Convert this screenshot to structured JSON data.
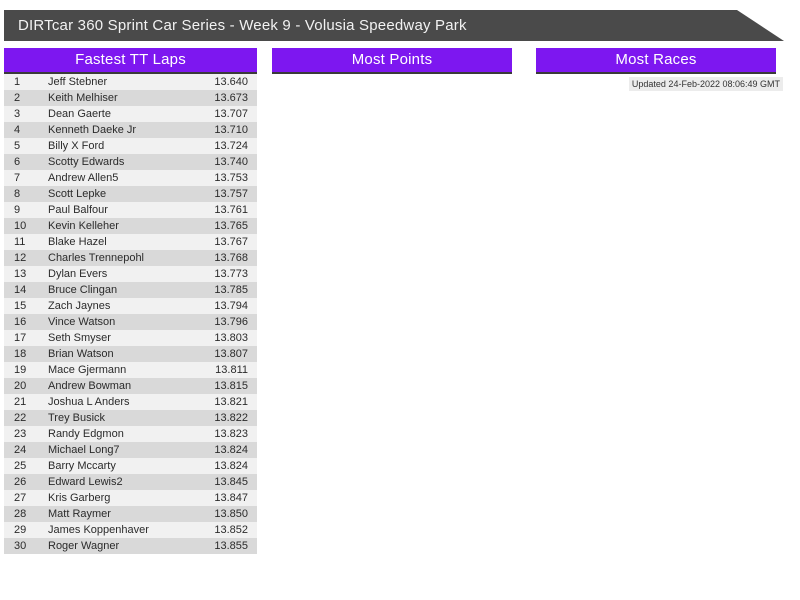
{
  "banner": {
    "title": "DIRTcar 360 Sprint Car Series - Week 9 - Volusia Speedway Park"
  },
  "sections": {
    "fastest_tt_laps_title": "Fastest TT Laps",
    "most_points_title": "Most Points",
    "most_races_title": "Most Races"
  },
  "updated_label": "Updated 24-Feb-2022 08:06:49 GMT",
  "colors": {
    "banner_gray": "#4a4a4a",
    "accent_purple": "#7d17f0",
    "header_border": "#3a3a3a",
    "row_odd": "#f1f1f1",
    "row_even": "#d9d9d9"
  },
  "fastest_tt_laps": {
    "columns": [
      "rank",
      "driver",
      "time"
    ],
    "rows": [
      {
        "rank": 1,
        "driver": "Jeff Stebner",
        "time": "13.640"
      },
      {
        "rank": 2,
        "driver": "Keith Melhiser",
        "time": "13.673"
      },
      {
        "rank": 3,
        "driver": "Dean Gaerte",
        "time": "13.707"
      },
      {
        "rank": 4,
        "driver": "Kenneth Daeke Jr",
        "time": "13.710"
      },
      {
        "rank": 5,
        "driver": "Billy X Ford",
        "time": "13.724"
      },
      {
        "rank": 6,
        "driver": "Scotty Edwards",
        "time": "13.740"
      },
      {
        "rank": 7,
        "driver": "Andrew Allen5",
        "time": "13.753"
      },
      {
        "rank": 8,
        "driver": "Scott Lepke",
        "time": "13.757"
      },
      {
        "rank": 9,
        "driver": "Paul Balfour",
        "time": "13.761"
      },
      {
        "rank": 10,
        "driver": "Kevin Kelleher",
        "time": "13.765"
      },
      {
        "rank": 11,
        "driver": "Blake Hazel",
        "time": "13.767"
      },
      {
        "rank": 12,
        "driver": "Charles Trennepohl",
        "time": "13.768"
      },
      {
        "rank": 13,
        "driver": "Dylan Evers",
        "time": "13.773"
      },
      {
        "rank": 14,
        "driver": "Bruce Clingan",
        "time": "13.785"
      },
      {
        "rank": 15,
        "driver": "Zach Jaynes",
        "time": "13.794"
      },
      {
        "rank": 16,
        "driver": "Vince Watson",
        "time": "13.796"
      },
      {
        "rank": 17,
        "driver": "Seth Smyser",
        "time": "13.803"
      },
      {
        "rank": 18,
        "driver": "Brian Watson",
        "time": "13.807"
      },
      {
        "rank": 19,
        "driver": "Mace Gjermann",
        "time": "13.811"
      },
      {
        "rank": 20,
        "driver": "Andrew Bowman",
        "time": "13.815"
      },
      {
        "rank": 21,
        "driver": "Joshua L Anders",
        "time": "13.821"
      },
      {
        "rank": 22,
        "driver": "Trey Busick",
        "time": "13.822"
      },
      {
        "rank": 23,
        "driver": "Randy Edgmon",
        "time": "13.823"
      },
      {
        "rank": 24,
        "driver": "Michael Long7",
        "time": "13.824"
      },
      {
        "rank": 25,
        "driver": "Barry Mccarty",
        "time": "13.824"
      },
      {
        "rank": 26,
        "driver": "Edward Lewis2",
        "time": "13.845"
      },
      {
        "rank": 27,
        "driver": "Kris Garberg",
        "time": "13.847"
      },
      {
        "rank": 28,
        "driver": "Matt Raymer",
        "time": "13.850"
      },
      {
        "rank": 29,
        "driver": "James Koppenhaver",
        "time": "13.852"
      },
      {
        "rank": 30,
        "driver": "Roger Wagner",
        "time": "13.855"
      }
    ]
  }
}
